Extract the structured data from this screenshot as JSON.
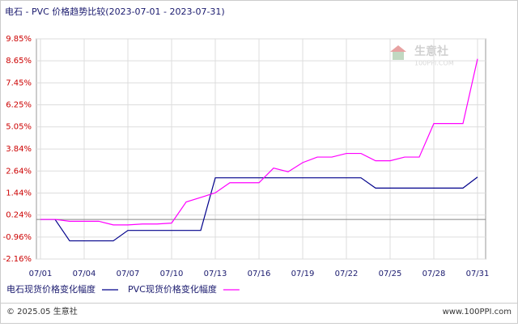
{
  "chart_data": {
    "type": "line",
    "title": "电石 - PVC 价格趋势比较(2023-07-01 - 2023-07-31)",
    "categories": [
      "07/01",
      null,
      null,
      "07/04",
      null,
      null,
      "07/07",
      null,
      null,
      "07/10",
      null,
      null,
      "07/13",
      null,
      null,
      "07/16",
      null,
      null,
      "07/19",
      null,
      null,
      "07/22",
      null,
      null,
      "07/25",
      null,
      null,
      "07/28",
      null,
      null,
      "07/31"
    ],
    "series": [
      {
        "name": "电石现货价格变化幅度",
        "color": "#00008b",
        "values": [
          0,
          0,
          -1.17,
          -1.17,
          -1.17,
          -1.17,
          -0.6,
          -0.6,
          -0.6,
          -0.6,
          -0.6,
          -0.6,
          2.27,
          2.27,
          2.27,
          2.27,
          2.27,
          2.27,
          2.27,
          2.27,
          2.27,
          2.27,
          2.27,
          1.71,
          1.71,
          1.71,
          1.71,
          1.71,
          1.71,
          1.71,
          2.31
        ]
      },
      {
        "name": "PVC现货价格变化幅度",
        "color": "#ff00ff",
        "values": [
          0,
          0,
          -0.1,
          -0.1,
          -0.1,
          -0.3,
          -0.3,
          -0.25,
          -0.25,
          -0.2,
          0.95,
          1.2,
          1.45,
          2.0,
          2.0,
          2.0,
          2.8,
          2.6,
          3.1,
          3.4,
          3.4,
          3.6,
          3.6,
          3.2,
          3.2,
          3.4,
          3.4,
          5.23,
          5.23,
          5.23,
          8.76
        ]
      }
    ],
    "ylim": [
      -2.16,
      9.85
    ],
    "yticks": [
      {
        "value": -2.16,
        "label": "-2.16%"
      },
      {
        "value": -0.96,
        "label": "-0.96%"
      },
      {
        "value": 0.24,
        "label": "0.24%"
      },
      {
        "value": 1.44,
        "label": "1.44%"
      },
      {
        "value": 2.64,
        "label": "2.64%"
      },
      {
        "value": 3.84,
        "label": "3.84%"
      },
      {
        "value": 5.05,
        "label": "5.05%"
      },
      {
        "value": 6.25,
        "label": "6.25%"
      },
      {
        "value": 7.45,
        "label": "7.45%"
      },
      {
        "value": 8.65,
        "label": "8.65%"
      },
      {
        "value": 9.85,
        "label": "9.85%"
      }
    ],
    "grid": true
  },
  "watermark": {
    "name": "生意社",
    "site": "100PPI.COM"
  },
  "footer": {
    "copyright": "© 2025.05 生意社",
    "site": "www.100PPI.com"
  }
}
